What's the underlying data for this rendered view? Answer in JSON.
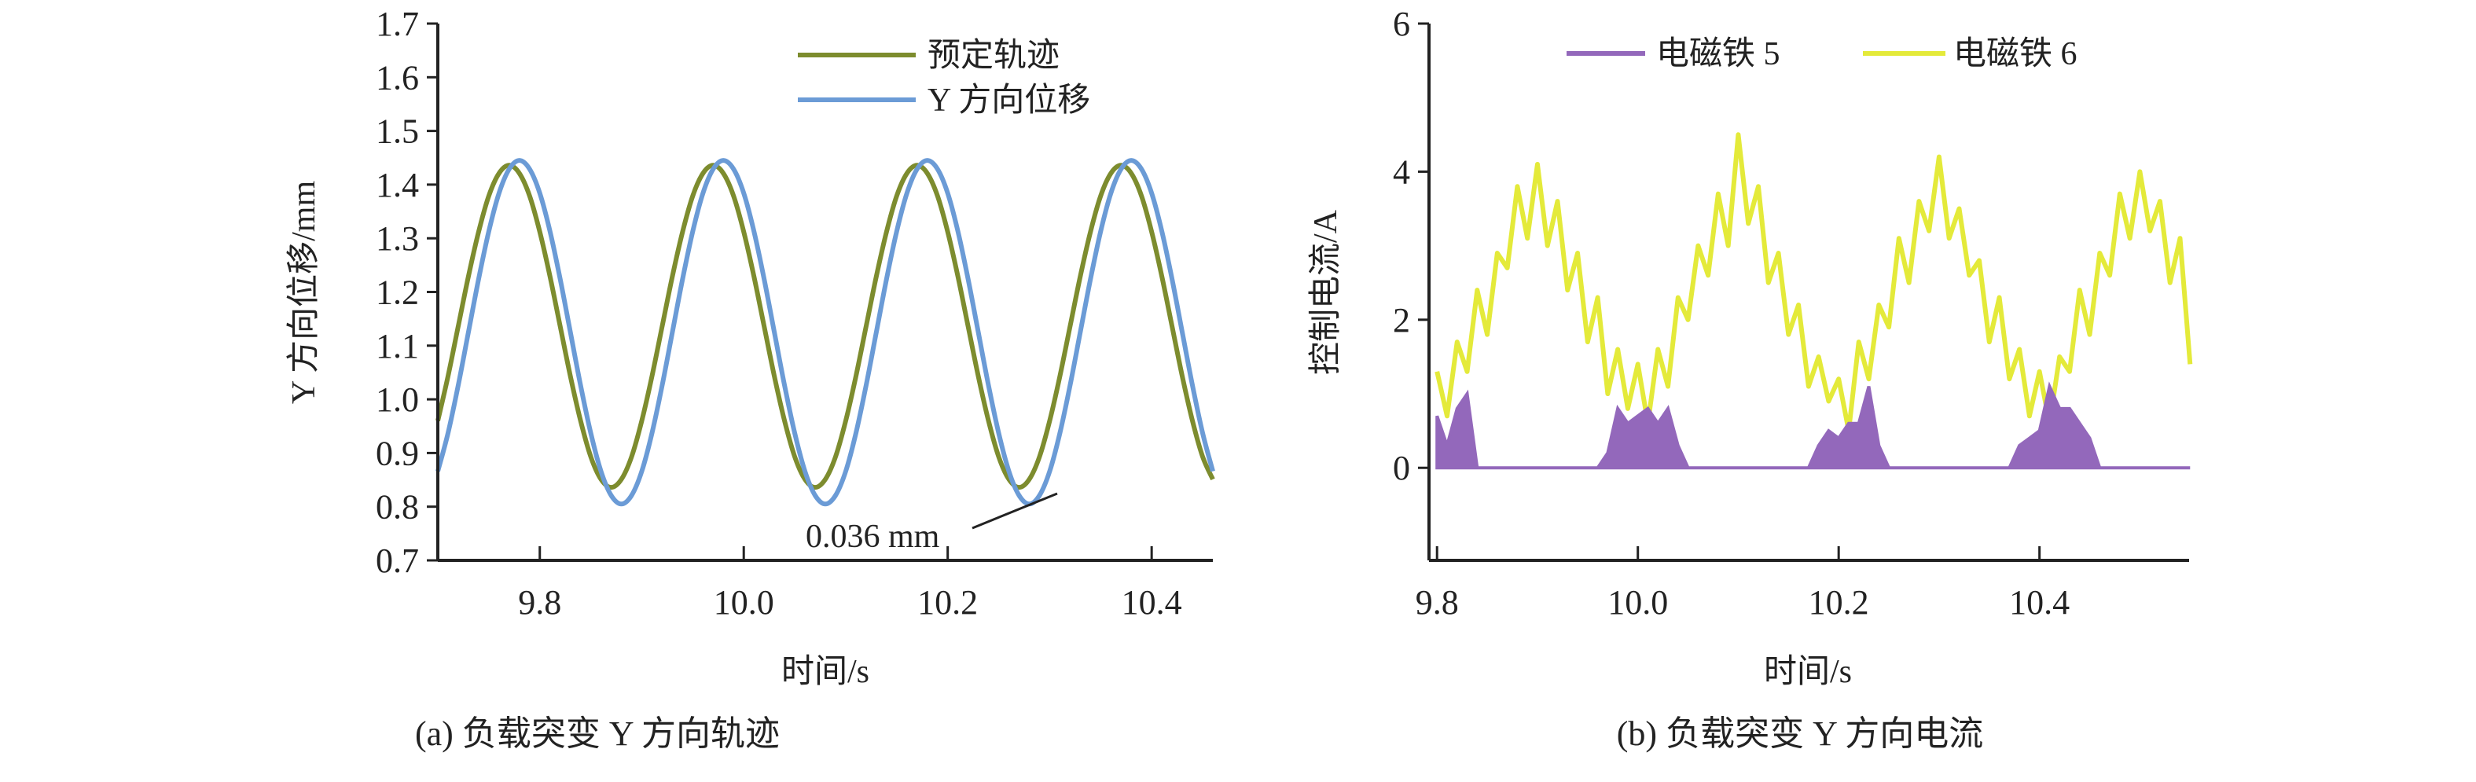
{
  "chart_data": [
    {
      "type": "line",
      "caption": "(a) 负载突变 Y 方向轨迹",
      "xlabel": "时间/s",
      "ylabel": "Y 方向位移/mm",
      "xlim": [
        9.7,
        10.46
      ],
      "ylim": [
        0.7,
        1.7
      ],
      "xticks": [
        "9.8",
        "10.0",
        "10.2",
        "10.4"
      ],
      "xtick_values": [
        9.8,
        10.0,
        10.2,
        10.4
      ],
      "yticks": [
        "0.7",
        "0.8",
        "0.9",
        "1.0",
        "1.1",
        "1.2",
        "1.3",
        "1.4",
        "1.5",
        "1.6",
        "1.7"
      ],
      "ytick_values": [
        0.7,
        0.8,
        0.9,
        1.0,
        1.1,
        1.2,
        1.3,
        1.4,
        1.5,
        1.6,
        1.7
      ],
      "legend_position": "top-right",
      "annotation": {
        "text": "0.036 mm",
        "x": 10.265,
        "y": 0.805
      },
      "x_start": 9.7,
      "x_step": 0.01,
      "series": [
        {
          "name": "预定轨迹",
          "color": "#7d8c2e",
          "values": [
            0.96,
            1.043,
            1.136,
            1.229,
            1.312,
            1.379,
            1.421,
            1.436,
            1.421,
            1.379,
            1.312,
            1.229,
            1.136,
            1.043,
            0.96,
            0.893,
            0.851,
            0.836,
            0.851,
            0.893,
            0.96,
            1.043,
            1.136,
            1.229,
            1.312,
            1.379,
            1.421,
            1.436,
            1.421,
            1.379,
            1.312,
            1.229,
            1.136,
            1.043,
            0.96,
            0.893,
            0.851,
            0.836,
            0.851,
            0.893,
            0.96,
            1.043,
            1.136,
            1.229,
            1.312,
            1.379,
            1.421,
            1.436,
            1.421,
            1.379,
            1.312,
            1.229,
            1.136,
            1.043,
            0.96,
            0.893,
            0.851,
            0.836,
            0.851,
            0.893,
            0.96,
            1.043,
            1.136,
            1.229,
            1.312,
            1.379,
            1.421,
            1.436,
            1.421,
            1.379,
            1.312,
            1.229,
            1.136,
            1.043,
            0.96,
            0.893,
            0.851
          ]
        },
        {
          "name": "Y 方向位移",
          "color": "#6b9bd6",
          "values": [
            0.866,
            0.937,
            1.026,
            1.125,
            1.224,
            1.313,
            1.384,
            1.429,
            1.445,
            1.429,
            1.384,
            1.313,
            1.224,
            1.125,
            1.026,
            0.937,
            0.866,
            0.821,
            0.805,
            0.821,
            0.866,
            0.937,
            1.026,
            1.125,
            1.224,
            1.313,
            1.384,
            1.429,
            1.445,
            1.429,
            1.384,
            1.313,
            1.224,
            1.125,
            1.026,
            0.937,
            0.866,
            0.821,
            0.805,
            0.821,
            0.866,
            0.937,
            1.026,
            1.125,
            1.224,
            1.313,
            1.384,
            1.429,
            1.445,
            1.429,
            1.384,
            1.313,
            1.224,
            1.125,
            1.026,
            0.937,
            0.866,
            0.821,
            0.805,
            0.821,
            0.866,
            0.937,
            1.026,
            1.125,
            1.224,
            1.313,
            1.384,
            1.429,
            1.445,
            1.429,
            1.384,
            1.313,
            1.224,
            1.125,
            1.026,
            0.937,
            0.866
          ]
        }
      ]
    },
    {
      "type": "line",
      "caption": "(b) 负载突变 Y 方向电流",
      "xlabel": "时间/s",
      "ylabel": "控制电流/A",
      "xlim": [
        9.792,
        10.549
      ],
      "ylim": [
        -1.25,
        6
      ],
      "xticks": [
        "9.8",
        "10.0",
        "10.2",
        "10.4"
      ],
      "xtick_values": [
        9.8,
        10.0,
        10.2,
        10.4
      ],
      "yticks": [
        "0",
        "2",
        "4",
        "6"
      ],
      "ytick_values": [
        0,
        2,
        4,
        6
      ],
      "legend_position": "top",
      "x_start": 9.8,
      "x_step": 0.01,
      "series": [
        {
          "name": "电磁铁 5",
          "color": "#9368bb",
          "values": [
            0.7,
            0.3,
            0.8,
            1.0,
            0,
            0,
            0,
            0,
            0,
            0,
            0,
            0,
            0,
            0,
            0,
            0,
            0,
            0.2,
            0.8,
            0.6,
            0.7,
            0.8,
            0.6,
            0.8,
            0.3,
            0,
            0,
            0,
            0,
            0,
            0,
            0,
            0,
            0,
            0,
            0,
            0,
            0,
            0.3,
            0.5,
            0.4,
            0.6,
            0.6,
            1.1,
            0.3,
            0,
            0,
            0,
            0,
            0,
            0,
            0,
            0,
            0,
            0,
            0,
            0,
            0,
            0.3,
            0.4,
            0.5,
            1.1,
            0.8,
            0.8,
            0.6,
            0.4,
            0,
            0,
            0,
            0,
            0,
            0,
            0,
            0,
            0,
            0
          ]
        },
        {
          "name": "电磁铁 6",
          "color": "#e4ea3a",
          "values": [
            1.3,
            0.7,
            1.7,
            1.3,
            2.4,
            1.8,
            2.9,
            2.7,
            3.8,
            3.1,
            4.1,
            3.0,
            3.6,
            2.4,
            2.9,
            1.7,
            2.3,
            1.0,
            1.6,
            0.8,
            1.4,
            0.6,
            1.6,
            1.1,
            2.3,
            2.0,
            3.0,
            2.6,
            3.7,
            3.0,
            4.5,
            3.3,
            3.8,
            2.5,
            2.9,
            1.8,
            2.2,
            1.1,
            1.5,
            0.9,
            1.2,
            0.5,
            1.7,
            1.2,
            2.2,
            1.9,
            3.1,
            2.5,
            3.6,
            3.2,
            4.2,
            3.1,
            3.5,
            2.6,
            2.8,
            1.7,
            2.3,
            1.2,
            1.6,
            0.7,
            1.3,
            0.6,
            1.5,
            1.3,
            2.4,
            1.8,
            2.9,
            2.6,
            3.7,
            3.1,
            4.0,
            3.2,
            3.6,
            2.5,
            3.1,
            1.4
          ]
        }
      ]
    }
  ]
}
